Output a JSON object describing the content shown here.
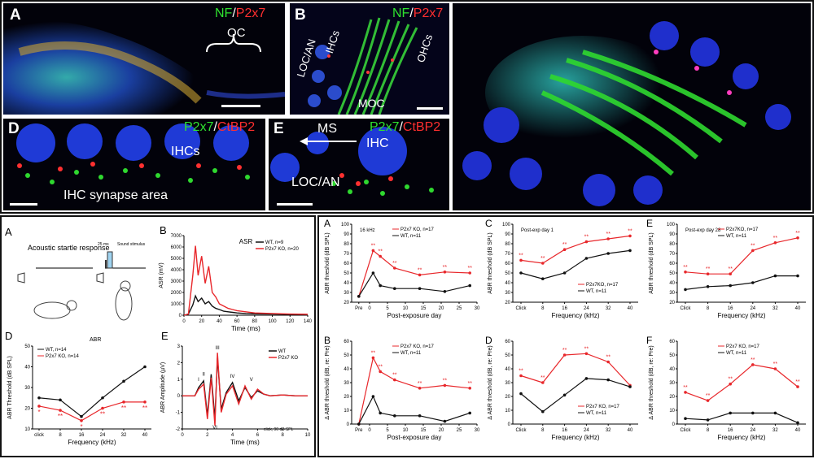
{
  "micro": {
    "A": {
      "letter": "A",
      "marker1": "NF",
      "slash": "/",
      "marker2": "P2x7",
      "region": "OC"
    },
    "B": {
      "letter": "B",
      "marker1": "NF",
      "slash": "/",
      "marker2": "P2x7",
      "loc": "LOC/AN",
      "ihc": "IHCs",
      "ohc": "OHCs",
      "moc": "MOC"
    },
    "D": {
      "letter": "D",
      "marker1": "P2x7",
      "slash": "/",
      "marker2": "CtBP2",
      "cells": "IHCs",
      "area": "IHC synapse area"
    },
    "E": {
      "letter": "E",
      "marker1": "P2x7",
      "slash": "/",
      "marker2": "CtBP2",
      "ms": "MS",
      "ihc": "IHC",
      "loc": "LOC/AN"
    }
  },
  "left_figure": {
    "A": {
      "letter": "A",
      "title": "Acoustic startle response",
      "pulse_label": "25 ms",
      "stim_label": "Sound stimulus"
    },
    "B": {
      "letter": "B"
    },
    "D": {
      "letter": "D"
    },
    "E": {
      "letter": "E",
      "note": "click, 90 dB SPL"
    }
  },
  "right_figure": {
    "A": {
      "letter": "A"
    },
    "B": {
      "letter": "B"
    },
    "C": {
      "letter": "C"
    },
    "D": {
      "letter": "D"
    },
    "E": {
      "letter": "E"
    },
    "F": {
      "letter": "F"
    }
  },
  "colors": {
    "wt": "#111111",
    "ko": "#e8272b",
    "nf": "#2fe22f",
    "p2x7": "#ff2f2f"
  },
  "chart_data": [
    {
      "id": "asr",
      "type": "line",
      "title": "ASR",
      "xlabel": "Time (ms)",
      "ylabel": "ASR (mV)",
      "xlim": [
        0,
        140
      ],
      "ylim": [
        0,
        7000
      ],
      "xticks": [
        0,
        20,
        40,
        60,
        80,
        100,
        120,
        140
      ],
      "yticks": [
        0,
        1000,
        2000,
        3000,
        4000,
        5000,
        6000,
        7000
      ],
      "x": [
        0,
        5,
        10,
        13,
        16,
        20,
        24,
        28,
        32,
        36,
        40,
        45,
        50,
        55,
        60,
        70,
        80,
        100,
        120,
        140
      ],
      "series": [
        {
          "name": "WT, n=9",
          "values": [
            0,
            100,
            900,
            1700,
            1200,
            1500,
            1000,
            1200,
            800,
            600,
            500,
            350,
            300,
            250,
            200,
            150,
            120,
            100,
            80,
            60
          ]
        },
        {
          "name": "P2x7 KO, n=20",
          "values": [
            0,
            100,
            3500,
            6100,
            3500,
            5200,
            2800,
            4300,
            2000,
            1600,
            1000,
            800,
            600,
            500,
            400,
            300,
            200,
            150,
            100,
            80
          ]
        }
      ]
    },
    {
      "id": "abr_thr",
      "type": "line",
      "title": "ABR",
      "xlabel": "Frequency (kHz)",
      "ylabel": "ABR Threshold (dB SPL)",
      "ylim": [
        10,
        50
      ],
      "yticks": [
        10,
        20,
        30,
        40,
        50
      ],
      "categories": [
        "click",
        "8",
        "16",
        "24",
        "32",
        "40"
      ],
      "series": [
        {
          "name": "WT, n=14",
          "values": [
            25,
            24,
            16,
            25,
            33,
            40
          ]
        },
        {
          "name": "P2x7 KO, n=14",
          "values": [
            21,
            19,
            14,
            20,
            23,
            23
          ]
        }
      ],
      "annotations": [
        "*",
        "**",
        "*",
        "**",
        "**",
        "**"
      ]
    },
    {
      "id": "abr_wave",
      "type": "line",
      "xlabel": "Time (ms)",
      "ylabel": "ABR Amplitude (µV)",
      "xlim": [
        0,
        10
      ],
      "ylim": [
        -2,
        3
      ],
      "xticks": [
        0,
        2,
        4,
        6,
        8,
        10
      ],
      "yticks": [
        -2,
        -1,
        0,
        1,
        2,
        3
      ],
      "x": [
        0,
        1,
        1.3,
        1.7,
        2,
        2.3,
        2.6,
        2.8,
        3.1,
        3.5,
        4,
        4.5,
        5,
        5.5,
        6,
        6.5,
        7,
        8,
        9,
        10
      ],
      "series": [
        {
          "name": "WT",
          "values": [
            0,
            0,
            0.5,
            0.9,
            -1.2,
            1.3,
            -1.4,
            2.3,
            -0.8,
            0.2,
            0.8,
            -0.3,
            0.5,
            -0.1,
            0.3,
            0.1,
            0,
            0.05,
            0,
            0
          ]
        },
        {
          "name": "P2x7 KO",
          "values": [
            0,
            0,
            0.4,
            0.7,
            -1.4,
            1.1,
            -1.8,
            2.6,
            -1.0,
            0.1,
            0.6,
            -0.5,
            0.6,
            -0.2,
            0.4,
            0.1,
            0,
            0.05,
            0,
            0
          ]
        }
      ],
      "peaks": [
        "I",
        "II",
        "III",
        "IV",
        "V",
        "VI"
      ]
    },
    {
      "id": "rA",
      "type": "line",
      "xlabel": "Post-exposure day",
      "ylabel": "ABR threshold (dB SPL)",
      "title": "16 kHz",
      "ylim": [
        20,
        100
      ],
      "yticks": [
        20,
        30,
        40,
        50,
        60,
        70,
        80,
        90,
        100
      ],
      "xticks": [
        "Pre",
        "0",
        "5",
        "10",
        "15",
        "20",
        "25",
        "30"
      ],
      "x": [
        -3,
        1,
        3,
        7,
        14,
        21,
        28
      ],
      "series": [
        {
          "name": "P2x7 KO, n=17",
          "values": [
            26,
            73,
            67,
            55,
            48,
            51,
            50
          ]
        },
        {
          "name": "WT, n=11",
          "values": [
            26,
            50,
            37,
            34,
            34,
            31,
            37
          ]
        }
      ],
      "annotations": [
        "**",
        "**",
        "**",
        "**",
        "**",
        "**"
      ]
    },
    {
      "id": "rB",
      "type": "line",
      "xlabel": "Post-exposure day",
      "ylabel": "Δ ABR threshold (dB, re: Pre)",
      "ylim": [
        0,
        60
      ],
      "yticks": [
        0,
        10,
        20,
        30,
        40,
        50,
        60
      ],
      "xticks": [
        "Pre",
        "0",
        "5",
        "10",
        "15",
        "20",
        "25",
        "30"
      ],
      "x": [
        -3,
        1,
        3,
        7,
        14,
        21,
        28
      ],
      "series": [
        {
          "name": "P2x7 KO, n=17",
          "values": [
            0,
            48,
            38,
            32,
            26,
            28,
            26
          ]
        },
        {
          "name": "WT, n=11",
          "values": [
            0,
            20,
            8,
            6,
            6,
            2,
            8
          ]
        }
      ],
      "annotations": [
        "**",
        "**",
        "**",
        "**",
        "**",
        "**"
      ]
    },
    {
      "id": "rC",
      "type": "line",
      "title": "Post-exp day 1",
      "xlabel": "Frequency (kHz)",
      "ylabel": "ABR threshold (dB SPL)",
      "ylim": [
        20,
        100
      ],
      "yticks": [
        20,
        30,
        40,
        50,
        60,
        70,
        80,
        90,
        100
      ],
      "categories": [
        "Click",
        "8",
        "16",
        "24",
        "32",
        "40"
      ],
      "series": [
        {
          "name": "P2x7KO, n=17",
          "values": [
            63,
            60,
            74,
            82,
            85,
            88
          ]
        },
        {
          "name": "WT, n=11",
          "values": [
            50,
            44,
            50,
            65,
            70,
            73
          ]
        }
      ],
      "annotations": [
        "**",
        "**",
        "**",
        "**",
        "**",
        "**"
      ]
    },
    {
      "id": "rD",
      "type": "line",
      "xlabel": "Frequency (kHz)",
      "ylabel": "Δ ABR threshold (dB, re: Pre)",
      "ylim": [
        0,
        60
      ],
      "yticks": [
        0,
        10,
        20,
        30,
        40,
        50,
        60
      ],
      "categories": [
        "Click",
        "8",
        "16",
        "24",
        "32",
        "40"
      ],
      "series": [
        {
          "name": "P2x7 KO, n=17",
          "values": [
            35,
            30,
            50,
            51,
            45,
            28
          ]
        },
        {
          "name": "WT, n=11",
          "values": [
            22,
            9,
            21,
            33,
            32,
            27
          ]
        }
      ],
      "annotations": [
        "**",
        "**",
        "**",
        "**",
        "**",
        ""
      ]
    },
    {
      "id": "rE",
      "type": "line",
      "title": "Post-exp day 28",
      "xlabel": "Frequency (kHz)",
      "ylabel": "ABR threshold (dB SPL)",
      "ylim": [
        20,
        100
      ],
      "yticks": [
        20,
        30,
        40,
        50,
        60,
        70,
        80,
        90,
        100
      ],
      "categories": [
        "Click",
        "8",
        "16",
        "24",
        "32",
        "40"
      ],
      "series": [
        {
          "name": "P2x7KO, n=17",
          "values": [
            51,
            49,
            49,
            73,
            81,
            86
          ]
        },
        {
          "name": "WT, n=11",
          "values": [
            33,
            36,
            37,
            40,
            47,
            47
          ]
        }
      ],
      "annotations": [
        "**",
        "**",
        "**",
        "**",
        "**",
        "**"
      ]
    },
    {
      "id": "rF",
      "type": "line",
      "xlabel": "Frequency (kHz)",
      "ylabel": "Δ ABR threshold (dB, re: Pre)",
      "ylim": [
        0,
        60
      ],
      "yticks": [
        0,
        10,
        20,
        30,
        40,
        50,
        60
      ],
      "categories": [
        "Click",
        "8",
        "16",
        "24",
        "32",
        "40"
      ],
      "series": [
        {
          "name": "P2x7 KO, n=17",
          "values": [
            23,
            17,
            29,
            43,
            40,
            27
          ]
        },
        {
          "name": "WT, n=11",
          "values": [
            4,
            3,
            8,
            8,
            8,
            1
          ]
        }
      ],
      "annotations": [
        "**",
        "**",
        "**",
        "**",
        "**",
        "**"
      ]
    }
  ]
}
